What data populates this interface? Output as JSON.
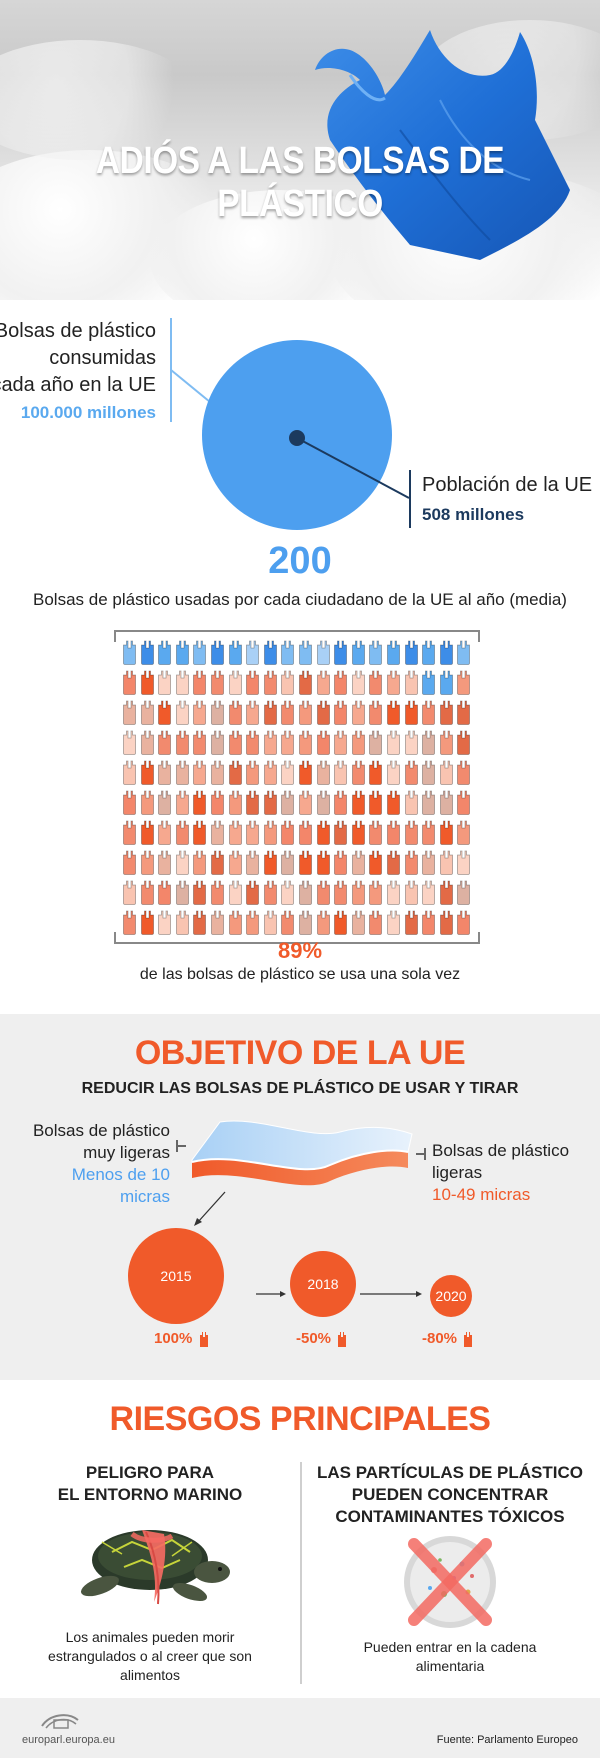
{
  "hero": {
    "title": "ADIÓS A LAS BOLSAS DE PLÁSTICO"
  },
  "consumption": {
    "left_label": [
      "Bolsas de plástico",
      "consumidas",
      "cada año en la UE"
    ],
    "left_value": "100.000 millones",
    "right_label": "Población de la UE",
    "right_value": "508 millones"
  },
  "per_citizen": {
    "number": "200",
    "caption": "Bolsas de plástico usadas por cada ciudadano de la UE al año (media)",
    "grid_total": 200,
    "grid_blue_count": 22,
    "single_use_pct": "89%",
    "single_use_caption": "de las bolsas de plástico se usa una sola vez"
  },
  "objective": {
    "title": "OBJETIVO DE LA UE",
    "subtitle": "REDUCIR LAS BOLSAS DE PLÁSTICO DE USAR Y TIRAR",
    "very_light": {
      "label": [
        "Bolsas de plástico",
        "muy ligeras"
      ],
      "value": "Menos de 10 micras"
    },
    "light": {
      "label": [
        "Bolsas de plástico",
        "ligeras"
      ],
      "value": "10-49 micras"
    },
    "timeline": [
      {
        "year": "2015",
        "pct": "100%"
      },
      {
        "year": "2018",
        "pct": "-50%"
      },
      {
        "year": "2020",
        "pct": "-80%"
      }
    ]
  },
  "risks": {
    "title": "RIESGOS PRINCIPALES",
    "left": {
      "title": [
        "PELIGRO PARA",
        "EL ENTORNO MARINO"
      ],
      "text": [
        "Los animales pueden morir",
        "estrangulados o al creer que son",
        "alimentos"
      ]
    },
    "right": {
      "title": [
        "LAS PARTÍCULAS DE PLÁSTICO",
        "PUEDEN CONCENTRAR",
        "CONTAMINANTES TÓXICOS"
      ],
      "text": [
        "Pueden entrar en la cadena",
        "alimentaria"
      ]
    }
  },
  "footer": {
    "site": "europarl.europa.eu",
    "source": "Fuente: Parlamento Europeo"
  },
  "colors": {
    "blue": "#4d9fef",
    "navy": "#1c3a5e",
    "orange": "#f05a2a"
  }
}
